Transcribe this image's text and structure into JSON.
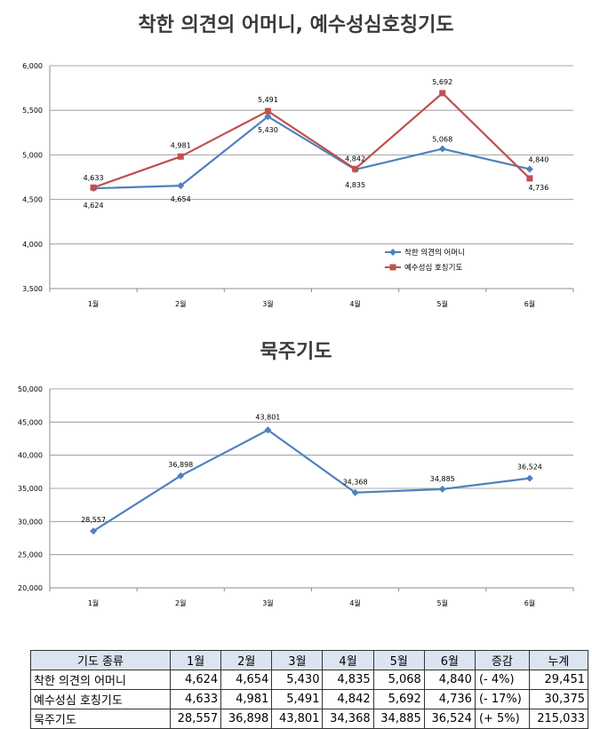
{
  "chart_data": [
    {
      "type": "line",
      "title": "착한 의견의 어머니, 예수성심호칭기도",
      "categories": [
        "1월",
        "2월",
        "3월",
        "4월",
        "5월",
        "6월"
      ],
      "series": [
        {
          "name": "착한 의견의 어머니",
          "values": [
            4624,
            4654,
            5430,
            4835,
            5068,
            4840
          ],
          "color": "#4f81bd",
          "marker": "diamond"
        },
        {
          "name": "예수성심 호칭기도",
          "values": [
            4633,
            4981,
            5491,
            4842,
            5692,
            4736
          ],
          "color": "#c0504d",
          "marker": "square"
        }
      ],
      "ylim": [
        3500,
        6000
      ],
      "yticks": [
        "3,500",
        "4,000",
        "4,500",
        "5,000",
        "5,500",
        "6,000"
      ],
      "grid": true,
      "legend": "bottom-right"
    },
    {
      "type": "line",
      "title": "묵주기도",
      "categories": [
        "1월",
        "2월",
        "3월",
        "4월",
        "5월",
        "6월"
      ],
      "series": [
        {
          "values": [
            28557,
            36898,
            43801,
            34368,
            34885,
            36524
          ],
          "color": "#4f81bd",
          "marker": "diamond"
        }
      ],
      "ylim": [
        20000,
        50000
      ],
      "yticks": [
        "20,000",
        "25,000",
        "30,000",
        "35,000",
        "40,000",
        "45,000",
        "50,000"
      ],
      "grid": true,
      "legend": "none"
    }
  ],
  "table": {
    "headers": [
      "기도 종류",
      "1월",
      "2월",
      "3월",
      "4월",
      "5월",
      "6월",
      "증감",
      "누계"
    ],
    "rows": [
      [
        "착한 의견의 어머니",
        "4,624",
        "4,654",
        "5,430",
        "4,835",
        "5,068",
        "4,840",
        "(-  4%)",
        "29,451"
      ],
      [
        "예수성심 호칭기도",
        "4,633",
        "4,981",
        "5,491",
        "4,842",
        "5,692",
        "4,736",
        "(- 17%)",
        "30,375"
      ],
      [
        "묵주기도",
        "28,557",
        "36,898",
        "43,801",
        "34,368",
        "34,885",
        "36,524",
        "(+  5%)",
        "215,033"
      ]
    ]
  }
}
